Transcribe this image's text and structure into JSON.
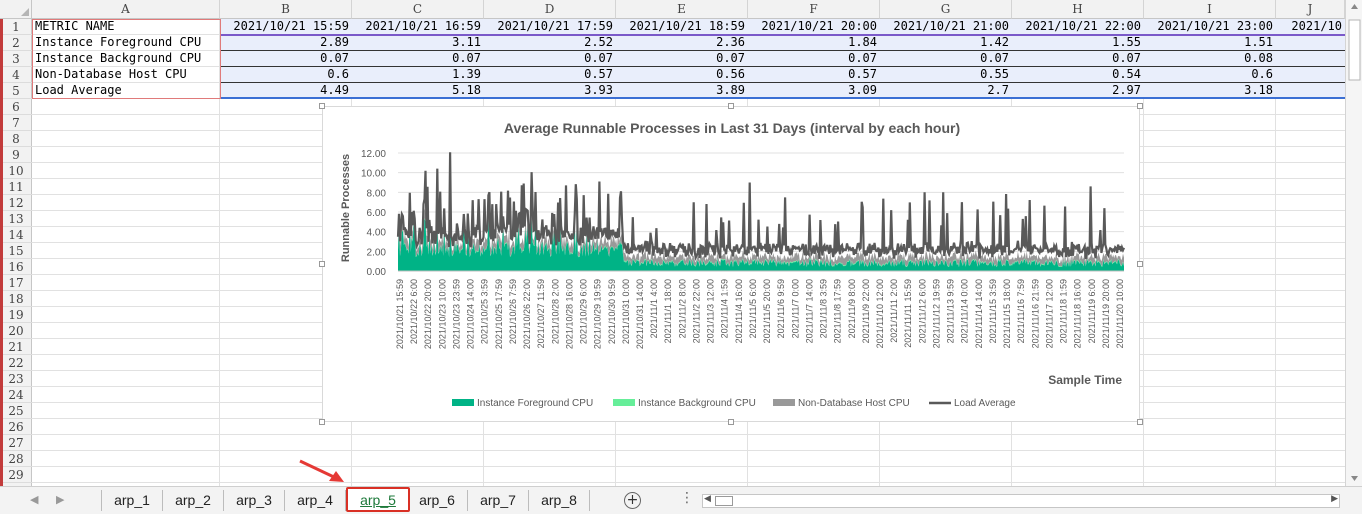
{
  "sheet": {
    "columns": [
      "A",
      "B",
      "C",
      "D",
      "E",
      "F",
      "G",
      "H",
      "I",
      "J"
    ],
    "rows": [
      "1",
      "2",
      "3",
      "4",
      "5",
      "6",
      "7",
      "8",
      "9",
      "10",
      "11",
      "12",
      "13",
      "14",
      "15",
      "16",
      "17",
      "18",
      "19",
      "20",
      "21",
      "22",
      "23",
      "24",
      "25",
      "26",
      "27",
      "28",
      "29"
    ],
    "header_label": "METRIC NAME",
    "time_headers": [
      "2021/10/21 15:59",
      "2021/10/21 16:59",
      "2021/10/21 17:59",
      "2021/10/21 18:59",
      "2021/10/21 20:00",
      "2021/10/21 21:00",
      "2021/10/21 22:00",
      "2021/10/21 23:00",
      "2021/10"
    ],
    "data_rows": [
      {
        "name": "Instance Foreground CPU",
        "values": [
          "2.89",
          "3.11",
          "2.52",
          "2.36",
          "1.84",
          "1.42",
          "1.55",
          "1.51"
        ]
      },
      {
        "name": "Instance Background CPU",
        "values": [
          "0.07",
          "0.07",
          "0.07",
          "0.07",
          "0.07",
          "0.07",
          "0.07",
          "0.08"
        ]
      },
      {
        "name": "Non-Database Host CPU",
        "values": [
          "0.6",
          "1.39",
          "0.57",
          "0.56",
          "0.57",
          "0.55",
          "0.54",
          "0.6"
        ]
      },
      {
        "name": "Load Average",
        "values": [
          "4.49",
          "5.18",
          "3.93",
          "3.89",
          "3.09",
          "2.7",
          "2.97",
          "3.18"
        ]
      }
    ]
  },
  "chart_data": {
    "type": "area",
    "title": "Average Runnable Processes in Last 31 Days (interval by each hour)",
    "xlabel": "Sample Time",
    "ylabel": "Runnable Processes",
    "ylim": [
      0,
      12
    ],
    "yticks": [
      "12.00",
      "10.00",
      "8.00",
      "6.00",
      "4.00",
      "2.00",
      "0.00"
    ],
    "grid": true,
    "legend_position": "bottom",
    "categories": [
      "2021/10/21 15:59",
      "2021/10/22 6:00",
      "2021/10/22 20:00",
      "2021/10/23 10:00",
      "2021/10/23 23:59",
      "2021/10/24 14:00",
      "2021/10/25 3:59",
      "2021/10/25 17:59",
      "2021/10/26 7:59",
      "2021/10/26 22:00",
      "2021/10/27 11:59",
      "2021/10/28 2:00",
      "2021/10/28 16:00",
      "2021/10/29 6:00",
      "2021/10/29 19:59",
      "2021/10/30 9:59",
      "2021/10/31 0:00",
      "2021/10/31 14:00",
      "2021/11/1 4:00",
      "2021/11/1 18:00",
      "2021/11/2 8:00",
      "2021/11/2 22:00",
      "2021/11/3 12:00",
      "2021/11/4 1:59",
      "2021/11/4 16:00",
      "2021/11/5 6:00",
      "2021/11/5 20:00",
      "2021/11/6 9:59",
      "2021/11/7 0:00",
      "2021/11/7 14:00",
      "2021/11/8 3:59",
      "2021/11/8 17:59",
      "2021/11/9 8:00",
      "2021/11/9 22:00",
      "2021/11/10 12:00",
      "2021/11/11 2:00",
      "2021/11/11 15:59",
      "2021/11/12 6:00",
      "2021/11/12 19:59",
      "2021/11/13 9:59",
      "2021/11/14 0:00",
      "2021/11/14 14:00",
      "2021/11/15 3:59",
      "2021/11/15 18:00",
      "2021/11/16 7:59",
      "2021/11/16 21:59",
      "2021/11/17 12:00",
      "2021/11/18 1:59",
      "2021/11/18 16:00",
      "2021/11/19 6:00",
      "2021/11/19 20:00",
      "2021/11/20 10:00"
    ],
    "series": [
      {
        "name": "Instance Foreground CPU",
        "color": "#00b386",
        "kind": "area"
      },
      {
        "name": "Instance Background CPU",
        "color": "#66ee99",
        "kind": "area"
      },
      {
        "name": "Non-Database Host CPU",
        "color": "#999999",
        "kind": "area"
      },
      {
        "name": "Load Average",
        "color": "#595959",
        "kind": "line"
      }
    ]
  },
  "tabs": {
    "items": [
      "arp_1",
      "arp_2",
      "arp_3",
      "arp_4",
      "arp_5",
      "arp_6",
      "arp_7",
      "arp_8"
    ],
    "active_index": 4,
    "add_label": "+"
  },
  "colors": {
    "accent_tab": "#1e7a3b",
    "highlight_red": "#d93025",
    "band_blue": "#e9eefb"
  }
}
